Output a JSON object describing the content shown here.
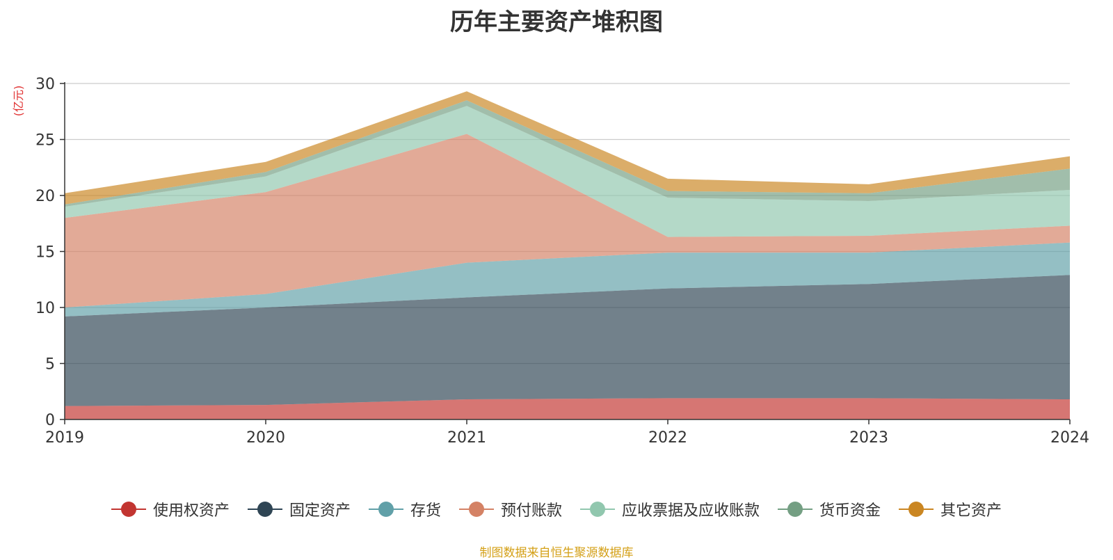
{
  "chart_data": {
    "type": "area",
    "stacked": true,
    "title": "历年主要资产堆积图",
    "ylabel": "(亿元)",
    "xlabel": "",
    "x": [
      "2019",
      "2020",
      "2021",
      "2022",
      "2023",
      "2024"
    ],
    "ylim": [
      0,
      30
    ],
    "yticks": [
      "0",
      "5",
      "10",
      "15",
      "20",
      "25",
      "30"
    ],
    "grid": true,
    "legend_position": "bottom",
    "series": [
      {
        "name": "使用权资产",
        "color": "#c23531",
        "values": [
          1.2,
          1.3,
          1.8,
          1.9,
          1.9,
          1.8
        ]
      },
      {
        "name": "固定资产",
        "color": "#2f4554",
        "values": [
          8.0,
          8.7,
          9.1,
          9.8,
          10.2,
          11.1
        ]
      },
      {
        "name": "存货",
        "color": "#61a0a8",
        "values": [
          0.8,
          1.2,
          3.1,
          3.2,
          2.8,
          2.9
        ]
      },
      {
        "name": "预付账款",
        "color": "#d48265",
        "values": [
          8.0,
          9.1,
          11.5,
          1.4,
          1.5,
          1.5
        ]
      },
      {
        "name": "应收票据及应收账款",
        "color": "#91c7ae",
        "values": [
          1.0,
          1.4,
          2.5,
          3.5,
          3.1,
          3.2
        ]
      },
      {
        "name": "货币资金",
        "color": "#749f83",
        "values": [
          0.2,
          0.4,
          0.5,
          0.6,
          0.7,
          1.9
        ]
      },
      {
        "name": "其它资产",
        "color": "#ca8622",
        "values": [
          1.0,
          0.9,
          0.8,
          1.1,
          0.8,
          1.1
        ]
      }
    ]
  },
  "source_text": "制图数据来自恒生聚源数据库"
}
